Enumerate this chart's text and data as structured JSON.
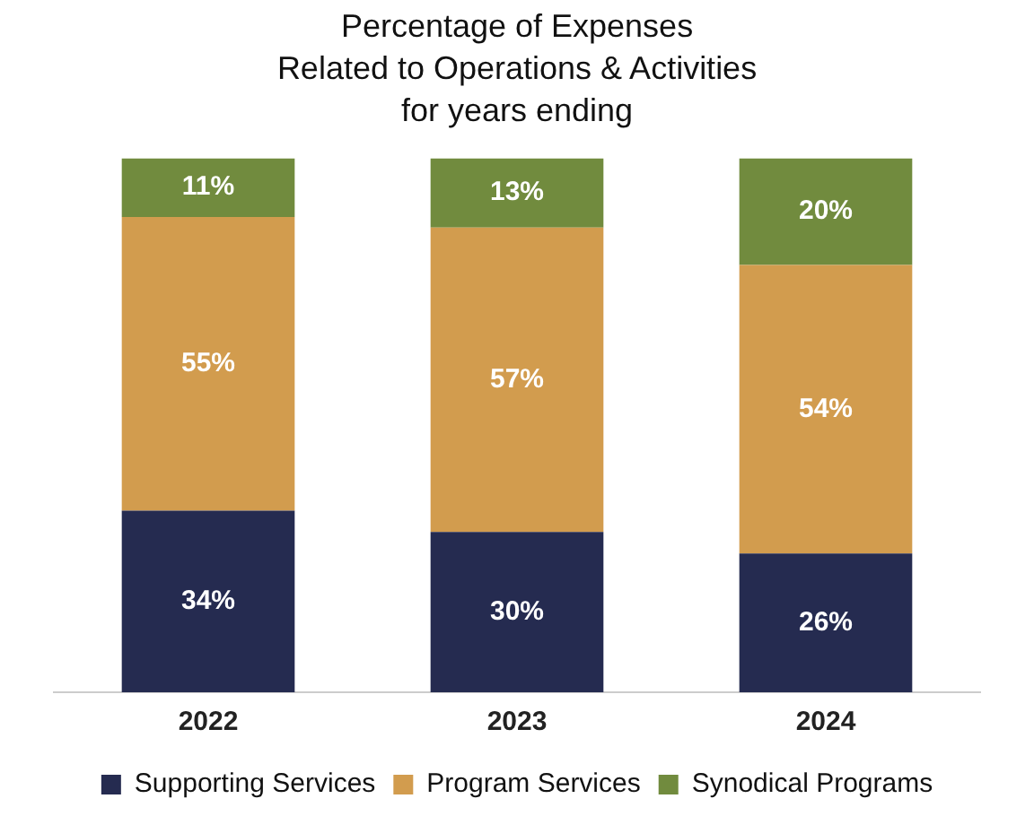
{
  "chart_data": {
    "type": "bar",
    "title": "Percentage of Expenses\nRelated to Operations & Activities\nfor years ending",
    "categories": [
      "2022",
      "2023",
      "2024"
    ],
    "stacked": true,
    "legend": "bottom",
    "grid": false,
    "tick_labels": "x",
    "series": [
      {
        "name": "Supporting Services",
        "color": "#252b50",
        "values": [
          34,
          30,
          26
        ],
        "value_labels": [
          "34%",
          "30%",
          "26%"
        ]
      },
      {
        "name": "Program Services",
        "color": "#d29c4e",
        "values": [
          55,
          57,
          54
        ],
        "value_labels": [
          "55%",
          "57%",
          "54%"
        ]
      },
      {
        "name": "Synodical Programs",
        "color": "#718b3e",
        "values": [
          11,
          13,
          20
        ],
        "value_labels": [
          "11%",
          "13%",
          "20%"
        ]
      }
    ]
  }
}
